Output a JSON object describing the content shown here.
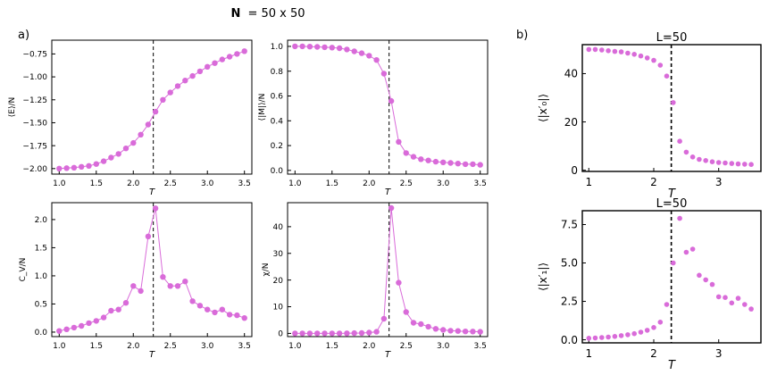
{
  "figure": {
    "supertitle_bold": "N",
    "supertitle_rest": "= 50 x 50",
    "label_a": "a)",
    "label_b": "b)",
    "marker_color": "#D96BD9",
    "critical_line_color": "#000000"
  },
  "chart_data": [
    {
      "type": "line",
      "id": "energy",
      "ylabel": "⟨E⟩/N",
      "xlabel": "T",
      "xlim": [
        0.9,
        3.6
      ],
      "ylim": [
        -2.06,
        -0.6
      ],
      "xticks": [
        1.0,
        1.5,
        2.0,
        2.5,
        3.0,
        3.5
      ],
      "yticks": [
        -2.0,
        -1.75,
        -1.5,
        -1.25,
        -1.0,
        -0.75
      ],
      "ytick_labels": [
        "−2.00",
        "−1.75",
        "−1.50",
        "−1.25",
        "−1.00",
        "−0.75"
      ],
      "critical_T": 2.27,
      "x": [
        1.0,
        1.1,
        1.2,
        1.3,
        1.4,
        1.5,
        1.6,
        1.7,
        1.8,
        1.9,
        2.0,
        2.1,
        2.2,
        2.3,
        2.4,
        2.5,
        2.6,
        2.7,
        2.8,
        2.9,
        3.0,
        3.1,
        3.2,
        3.3,
        3.4,
        3.5
      ],
      "y": [
        -2.0,
        -1.995,
        -1.99,
        -1.98,
        -1.97,
        -1.95,
        -1.92,
        -1.88,
        -1.84,
        -1.78,
        -1.72,
        -1.63,
        -1.52,
        -1.38,
        -1.25,
        -1.17,
        -1.1,
        -1.04,
        -0.99,
        -0.94,
        -0.89,
        -0.85,
        -0.81,
        -0.78,
        -0.75,
        -0.72
      ]
    },
    {
      "type": "line",
      "id": "magnetization",
      "ylabel": "⟨|M|⟩/N",
      "xlabel": "T",
      "xlim": [
        0.9,
        3.6
      ],
      "ylim": [
        -0.03,
        1.05
      ],
      "xticks": [
        1.0,
        1.5,
        2.0,
        2.5,
        3.0,
        3.5
      ],
      "yticks": [
        0.0,
        0.2,
        0.4,
        0.6,
        0.8,
        1.0
      ],
      "ytick_labels": [
        "0.0",
        "0.2",
        "0.4",
        "0.6",
        "0.8",
        "1.0"
      ],
      "critical_T": 2.27,
      "x": [
        1.0,
        1.1,
        1.2,
        1.3,
        1.4,
        1.5,
        1.6,
        1.7,
        1.8,
        1.9,
        2.0,
        2.1,
        2.2,
        2.3,
        2.4,
        2.5,
        2.6,
        2.7,
        2.8,
        2.9,
        3.0,
        3.1,
        3.2,
        3.3,
        3.4,
        3.5
      ],
      "y": [
        1.0,
        1.0,
        0.998,
        0.996,
        0.993,
        0.99,
        0.985,
        0.975,
        0.96,
        0.945,
        0.925,
        0.89,
        0.78,
        0.56,
        0.23,
        0.14,
        0.11,
        0.09,
        0.08,
        0.07,
        0.065,
        0.06,
        0.055,
        0.05,
        0.05,
        0.045
      ]
    },
    {
      "type": "line",
      "id": "specific-heat",
      "ylabel": "C_V/N",
      "xlabel": "T",
      "xlim": [
        0.9,
        3.6
      ],
      "ylim": [
        -0.08,
        2.3
      ],
      "xticks": [
        1.0,
        1.5,
        2.0,
        2.5,
        3.0,
        3.5
      ],
      "yticks": [
        0.0,
        0.5,
        1.0,
        1.5,
        2.0
      ],
      "ytick_labels": [
        "0.0",
        "0.5",
        "1.0",
        "1.5",
        "2.0"
      ],
      "critical_T": 2.27,
      "x": [
        1.0,
        1.1,
        1.2,
        1.3,
        1.4,
        1.5,
        1.6,
        1.7,
        1.8,
        1.9,
        2.0,
        2.1,
        2.2,
        2.3,
        2.4,
        2.5,
        2.6,
        2.7,
        2.8,
        2.9,
        3.0,
        3.1,
        3.2,
        3.3,
        3.4,
        3.5
      ],
      "y": [
        0.02,
        0.05,
        0.08,
        0.11,
        0.16,
        0.2,
        0.26,
        0.38,
        0.4,
        0.52,
        0.82,
        0.73,
        1.7,
        2.2,
        0.98,
        0.82,
        0.82,
        0.9,
        0.55,
        0.47,
        0.4,
        0.35,
        0.4,
        0.31,
        0.3,
        0.25
      ]
    },
    {
      "type": "line",
      "id": "susceptibility",
      "ylabel": "χ/N",
      "xlabel": "T",
      "xlim": [
        0.9,
        3.6
      ],
      "ylim": [
        -1.2,
        49
      ],
      "xticks": [
        1.0,
        1.5,
        2.0,
        2.5,
        3.0,
        3.5
      ],
      "yticks": [
        0,
        10,
        20,
        30,
        40
      ],
      "ytick_labels": [
        "0",
        "10",
        "20",
        "30",
        "40"
      ],
      "critical_T": 2.27,
      "x": [
        1.0,
        1.1,
        1.2,
        1.3,
        1.4,
        1.5,
        1.6,
        1.7,
        1.8,
        1.9,
        2.0,
        2.1,
        2.2,
        2.3,
        2.4,
        2.5,
        2.6,
        2.7,
        2.8,
        2.9,
        3.0,
        3.1,
        3.2,
        3.3,
        3.4,
        3.5
      ],
      "y": [
        0.0,
        0.0,
        0.0,
        0.0,
        0.0,
        0.0,
        0.0,
        0.05,
        0.1,
        0.15,
        0.3,
        0.6,
        5.5,
        47.0,
        19.0,
        8.0,
        4.0,
        3.5,
        2.5,
        1.7,
        1.3,
        1.0,
        0.9,
        0.75,
        0.7,
        0.6
      ]
    },
    {
      "type": "scatter",
      "id": "pc0",
      "title": "L=50",
      "ylabel": "⟨|x′₀|⟩",
      "xlabel": "T",
      "xlim": [
        0.9,
        3.65
      ],
      "ylim": [
        -0.5,
        52
      ],
      "xticks": [
        1,
        2,
        3
      ],
      "yticks": [
        0,
        20,
        40
      ],
      "ytick_labels": [
        "0",
        "20",
        "40"
      ],
      "critical_T": 2.27,
      "x": [
        1.0,
        1.1,
        1.2,
        1.3,
        1.4,
        1.5,
        1.6,
        1.7,
        1.8,
        1.9,
        2.0,
        2.1,
        2.2,
        2.3,
        2.4,
        2.5,
        2.6,
        2.7,
        2.8,
        2.9,
        3.0,
        3.1,
        3.2,
        3.3,
        3.4,
        3.5
      ],
      "y": [
        50.0,
        50.0,
        49.8,
        49.5,
        49.2,
        49.0,
        48.5,
        48.0,
        47.3,
        46.5,
        45.5,
        43.5,
        39.0,
        28.0,
        12.0,
        7.5,
        5.5,
        4.5,
        4.0,
        3.5,
        3.2,
        3.0,
        2.8,
        2.6,
        2.5,
        2.4
      ]
    },
    {
      "type": "scatter",
      "id": "pc1",
      "title": "L=50",
      "ylabel": "⟨|x′₁|⟩",
      "xlabel": "T",
      "xlim": [
        0.9,
        3.65
      ],
      "ylim": [
        -0.2,
        8.4
      ],
      "xticks": [
        1,
        2,
        3
      ],
      "yticks": [
        0.0,
        2.5,
        5.0,
        7.5
      ],
      "ytick_labels": [
        "0.0",
        "2.5",
        "5.0",
        "7.5"
      ],
      "critical_T": 2.27,
      "x": [
        1.0,
        1.1,
        1.2,
        1.3,
        1.4,
        1.5,
        1.6,
        1.7,
        1.8,
        1.9,
        2.0,
        2.1,
        2.2,
        2.3,
        2.4,
        2.5,
        2.6,
        2.7,
        2.8,
        2.9,
        3.0,
        3.1,
        3.2,
        3.3,
        3.4,
        3.5
      ],
      "y": [
        0.1,
        0.12,
        0.15,
        0.18,
        0.22,
        0.27,
        0.33,
        0.4,
        0.5,
        0.62,
        0.8,
        1.15,
        2.3,
        5.0,
        7.9,
        5.7,
        5.9,
        4.2,
        3.9,
        3.6,
        2.8,
        2.75,
        2.4,
        2.7,
        2.3,
        2.0
      ]
    }
  ]
}
